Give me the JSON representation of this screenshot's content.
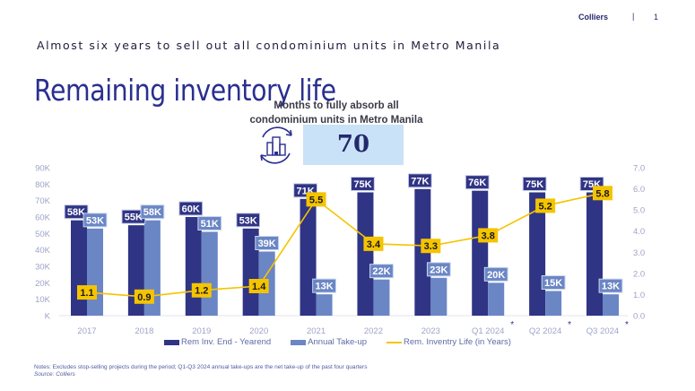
{
  "header": {
    "brand": "Colliers",
    "separator": "|",
    "page_number": "1"
  },
  "subtitle": "Almost six years to sell out all condominium units in Metro Manila",
  "title": "Remaining inventory life",
  "kpi": {
    "caption_line1": "Months to fully absorb all",
    "caption_line2": "condominium units in Metro Manila",
    "value": "70",
    "icon": "cycle-buildings-icon"
  },
  "notes": "Notes: Excludes stop-selling projects during the period; Q1-Q3 2024 annual take-ups are the net take-up of the past four quarters",
  "source": "Source: Colliers",
  "colors": {
    "dark_bar": "#303484",
    "light_bar": "#6b86c4",
    "line": "#f5c400",
    "axis_text": "#9ea4c8",
    "title": "#2a2f8f"
  },
  "chart_data": {
    "type": "bar",
    "title": "Remaining inventory life",
    "xlabel": "",
    "ylabel": "",
    "y2label": "",
    "categories": [
      "2017",
      "2018",
      "2019",
      "2020",
      "2021",
      "2022",
      "2023",
      "Q1 2024",
      "Q2 2024",
      "Q3 2024"
    ],
    "category_asterisk": [
      false,
      false,
      false,
      false,
      false,
      false,
      false,
      true,
      true,
      true
    ],
    "ylim": [
      0,
      90
    ],
    "y_ticks": [
      "K",
      "10K",
      "20K",
      "30K",
      "40K",
      "50K",
      "60K",
      "70K",
      "80K",
      "90K"
    ],
    "y2lim": [
      0,
      7
    ],
    "y2_ticks": [
      "0.0",
      "1.0",
      "2.0",
      "3.0",
      "4.0",
      "5.0",
      "6.0",
      "7.0"
    ],
    "grid": false,
    "legend_position": "bottom",
    "series": [
      {
        "name": "Rem Inv. End - Yearend",
        "type": "bar",
        "axis": "left",
        "unit": "thousand units",
        "values": [
          58,
          55,
          60,
          53,
          71,
          75,
          77,
          76,
          75,
          75
        ],
        "labels": [
          "58K",
          "55K",
          "60K",
          "53K",
          "71K",
          "75K",
          "77K",
          "76K",
          "75K",
          "75K"
        ]
      },
      {
        "name": "Annual Take-up",
        "type": "bar",
        "axis": "left",
        "unit": "thousand units",
        "values": [
          53,
          58,
          51,
          39,
          13,
          22,
          23,
          20,
          15,
          13
        ],
        "labels": [
          "53K",
          "58K",
          "51K",
          "39K",
          "13K",
          "22K",
          "23K",
          "20K",
          "15K",
          "13K"
        ]
      },
      {
        "name": "Rem. Inventry Life (in Years)",
        "type": "line",
        "axis": "right",
        "unit": "years",
        "values": [
          1.1,
          0.9,
          1.2,
          1.4,
          5.5,
          3.4,
          3.3,
          3.8,
          5.2,
          5.8
        ],
        "labels": [
          "1.1",
          "0.9",
          "1.2",
          "1.4",
          "5.5",
          "3.4",
          "3.3",
          "3.8",
          "5.2",
          "5.8"
        ]
      }
    ]
  }
}
